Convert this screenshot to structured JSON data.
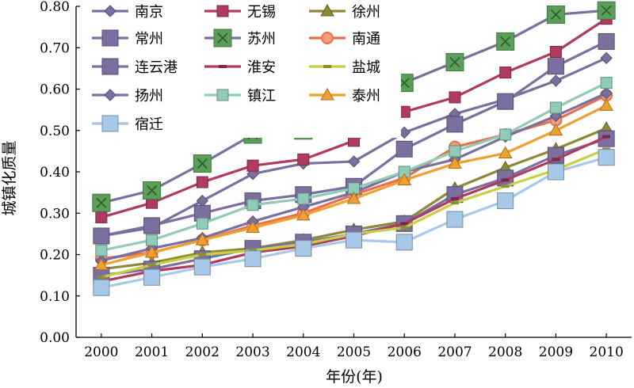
{
  "chart_data": {
    "type": "line",
    "xlabel": "年份(年)",
    "ylabel": "城镇化质量",
    "ylim": [
      0,
      0.8
    ],
    "yticks": [
      "0.00",
      "0.10",
      "0.20",
      "0.30",
      "0.40",
      "0.50",
      "0.60",
      "0.70",
      "0.80"
    ],
    "categories": [
      "2000",
      "2001",
      "2002",
      "2003",
      "2004",
      "2005",
      "2006",
      "2007",
      "2008",
      "2009",
      "2010"
    ],
    "grid": false,
    "legend_position": "top",
    "series": [
      {
        "name": "南京",
        "color": "#7b6fa0",
        "marker": "diamond",
        "values": [
          0.245,
          0.265,
          0.33,
          0.395,
          0.42,
          0.425,
          0.495,
          0.54,
          0.575,
          0.62,
          0.675
        ]
      },
      {
        "name": "无锡",
        "color": "#b03a60",
        "marker": "square",
        "values": [
          0.29,
          0.325,
          0.375,
          0.415,
          0.43,
          0.475,
          0.545,
          0.58,
          0.64,
          0.69,
          0.77
        ]
      },
      {
        "name": "徐州",
        "color": "#8f8838",
        "marker": "triangle",
        "values": [
          0.165,
          0.18,
          0.205,
          0.215,
          0.235,
          0.26,
          0.28,
          0.36,
          0.41,
          0.455,
          0.505
        ]
      },
      {
        "name": "常州",
        "color": "#7b6fa0",
        "marker": "big-square",
        "values": [
          0.245,
          0.27,
          0.3,
          0.33,
          0.345,
          0.365,
          0.455,
          0.515,
          0.57,
          0.655,
          0.715
        ]
      },
      {
        "name": "苏州",
        "color": "#7b6fa0",
        "marker": "x-square",
        "values": [
          0.325,
          0.355,
          0.42,
          0.49,
          0.5,
          0.525,
          0.615,
          0.665,
          0.715,
          0.78,
          0.79
        ]
      },
      {
        "name": "南通",
        "color": "#e86f4b",
        "marker": "circle",
        "values": [
          0.19,
          0.205,
          0.235,
          0.27,
          0.3,
          0.345,
          0.385,
          0.46,
          0.49,
          0.525,
          0.585
        ]
      },
      {
        "name": "连云港",
        "color": "#7b6fa0",
        "marker": "big-square",
        "values": [
          0.15,
          0.165,
          0.19,
          0.215,
          0.23,
          0.25,
          0.275,
          0.345,
          0.385,
          0.44,
          0.48
        ]
      },
      {
        "name": "淮安",
        "color": "#b03a60",
        "marker": "dash",
        "values": [
          0.135,
          0.16,
          0.175,
          0.205,
          0.22,
          0.245,
          0.275,
          0.335,
          0.38,
          0.43,
          0.485
        ]
      },
      {
        "name": "盐城",
        "color": "#c8d040",
        "marker": "dash",
        "values": [
          0.145,
          0.175,
          0.2,
          0.21,
          0.225,
          0.25,
          0.265,
          0.325,
          0.365,
          0.405,
          0.455
        ]
      },
      {
        "name": "扬州",
        "color": "#7b6fa0",
        "marker": "diamond",
        "values": [
          0.185,
          0.215,
          0.24,
          0.28,
          0.315,
          0.35,
          0.4,
          0.43,
          0.485,
          0.535,
          0.59
        ]
      },
      {
        "name": "镇江",
        "color": "#8fcbb8",
        "marker": "square",
        "values": [
          0.21,
          0.235,
          0.275,
          0.32,
          0.335,
          0.36,
          0.4,
          0.45,
          0.49,
          0.555,
          0.615
        ]
      },
      {
        "name": "泰州",
        "color": "#f0a030",
        "marker": "triangle",
        "values": [
          0.175,
          0.205,
          0.235,
          0.265,
          0.295,
          0.335,
          0.38,
          0.42,
          0.445,
          0.5,
          0.56
        ]
      },
      {
        "name": "宿迁",
        "color": "#a8c8e8",
        "marker": "big-square",
        "values": [
          0.12,
          0.145,
          0.17,
          0.19,
          0.215,
          0.235,
          0.23,
          0.285,
          0.33,
          0.4,
          0.435
        ]
      }
    ]
  }
}
